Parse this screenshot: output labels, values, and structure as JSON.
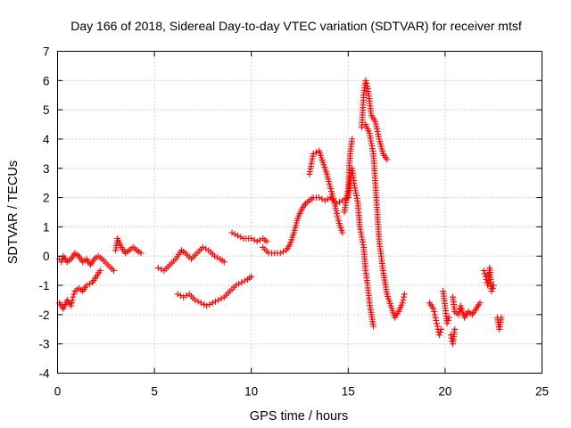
{
  "chart_data": {
    "type": "scatter",
    "title": "Day 166 of 2018, Sidereal Day-to-day VTEC variation (SDTVAR) for receiver mtsf",
    "xlabel": "GPS time / hours",
    "ylabel": "SDTVAR / TECUs",
    "xlim": [
      0,
      25
    ],
    "ylim": [
      -4,
      7
    ],
    "xticks": [
      0,
      5,
      10,
      15,
      20,
      25
    ],
    "yticks": [
      -4,
      -3,
      -2,
      -1,
      0,
      1,
      2,
      3,
      4,
      5,
      6,
      7
    ],
    "grid": true,
    "legend": "none",
    "marker": "+",
    "series": [
      {
        "name": "SDTVAR",
        "color": "#ff0000",
        "segments": [
          [
            [
              0.1,
              -0.1
            ],
            [
              0.2,
              -0.2
            ],
            [
              0.3,
              0.0
            ],
            [
              0.5,
              -0.2
            ],
            [
              0.7,
              -0.1
            ],
            [
              0.9,
              0.1
            ],
            [
              1.1,
              0.0
            ],
            [
              1.3,
              -0.2
            ],
            [
              1.5,
              -0.1
            ],
            [
              1.7,
              -0.3
            ],
            [
              1.9,
              -0.1
            ],
            [
              2.1,
              0.0
            ],
            [
              2.3,
              -0.1
            ],
            [
              2.6,
              -0.3
            ],
            [
              2.9,
              -0.5
            ]
          ],
          [
            [
              0.1,
              -1.6
            ],
            [
              0.3,
              -1.8
            ],
            [
              0.5,
              -1.5
            ],
            [
              0.7,
              -1.7
            ],
            [
              0.8,
              -1.4
            ],
            [
              0.9,
              -1.2
            ],
            [
              1.1,
              -1.1
            ],
            [
              1.3,
              -1.2
            ],
            [
              1.5,
              -1.0
            ],
            [
              1.8,
              -0.9
            ],
            [
              2.0,
              -0.7
            ],
            [
              2.2,
              -0.5
            ]
          ],
          [
            [
              3.0,
              0.2
            ],
            [
              3.1,
              0.6
            ],
            [
              3.3,
              0.3
            ],
            [
              3.5,
              0.1
            ],
            [
              3.7,
              0.2
            ],
            [
              3.9,
              0.3
            ],
            [
              4.1,
              0.2
            ],
            [
              4.3,
              0.1
            ]
          ],
          [
            [
              5.2,
              -0.4
            ],
            [
              5.5,
              -0.5
            ],
            [
              5.8,
              -0.3
            ],
            [
              6.1,
              -0.1
            ],
            [
              6.4,
              0.2
            ],
            [
              6.6,
              0.1
            ],
            [
              6.9,
              -0.1
            ],
            [
              7.2,
              0.1
            ],
            [
              7.5,
              0.3
            ],
            [
              7.8,
              0.2
            ],
            [
              8.1,
              0.0
            ],
            [
              8.4,
              -0.1
            ],
            [
              8.6,
              -0.2
            ]
          ],
          [
            [
              6.2,
              -1.3
            ],
            [
              6.5,
              -1.4
            ],
            [
              6.8,
              -1.3
            ],
            [
              7.1,
              -1.5
            ],
            [
              7.4,
              -1.6
            ],
            [
              7.7,
              -1.7
            ],
            [
              8.0,
              -1.6
            ],
            [
              8.3,
              -1.5
            ],
            [
              8.6,
              -1.4
            ],
            [
              8.9,
              -1.2
            ],
            [
              9.2,
              -1.0
            ],
            [
              9.5,
              -0.9
            ],
            [
              9.8,
              -0.8
            ],
            [
              10.0,
              -0.7
            ]
          ],
          [
            [
              9.0,
              0.8
            ],
            [
              9.3,
              0.7
            ],
            [
              9.6,
              0.6
            ],
            [
              10.0,
              0.6
            ],
            [
              10.3,
              0.5
            ],
            [
              10.6,
              0.6
            ],
            [
              10.8,
              0.5
            ]
          ],
          [
            [
              10.6,
              0.3
            ],
            [
              10.9,
              0.1
            ],
            [
              11.2,
              0.1
            ],
            [
              11.5,
              0.1
            ],
            [
              11.8,
              0.2
            ],
            [
              12.0,
              0.4
            ],
            [
              12.2,
              0.8
            ],
            [
              12.4,
              1.3
            ],
            [
              12.6,
              1.6
            ],
            [
              12.8,
              1.8
            ],
            [
              13.0,
              1.9
            ],
            [
              13.2,
              2.0
            ],
            [
              13.5,
              2.0
            ],
            [
              13.8,
              1.9
            ],
            [
              14.1,
              2.0
            ],
            [
              14.4,
              1.8
            ],
            [
              14.7,
              1.9
            ],
            [
              15.0,
              2.0
            ]
          ],
          [
            [
              13.0,
              2.8
            ],
            [
              13.2,
              3.5
            ],
            [
              13.5,
              3.6
            ],
            [
              13.7,
              3.2
            ],
            [
              13.9,
              2.8
            ],
            [
              14.1,
              2.3
            ],
            [
              14.3,
              1.8
            ],
            [
              14.5,
              1.2
            ],
            [
              14.7,
              0.8
            ]
          ],
          [
            [
              14.8,
              1.5
            ],
            [
              15.0,
              2.3
            ],
            [
              15.1,
              3.5
            ],
            [
              15.2,
              4.0
            ]
          ],
          [
            [
              15.0,
              2.0
            ],
            [
              15.2,
              3.0
            ],
            [
              15.3,
              2.5
            ],
            [
              15.5,
              1.8
            ],
            [
              15.6,
              1.0
            ],
            [
              15.8,
              0.3
            ],
            [
              15.9,
              -0.5
            ],
            [
              16.0,
              -1.0
            ],
            [
              16.1,
              -1.6
            ],
            [
              16.2,
              -2.0
            ],
            [
              16.3,
              -2.4
            ]
          ],
          [
            [
              15.7,
              4.4
            ],
            [
              15.8,
              5.5
            ],
            [
              15.9,
              6.0
            ],
            [
              16.0,
              5.8
            ],
            [
              16.1,
              5.3
            ],
            [
              16.2,
              4.8
            ],
            [
              16.4,
              4.6
            ],
            [
              16.6,
              4.0
            ],
            [
              16.8,
              3.5
            ],
            [
              17.0,
              3.3
            ]
          ],
          [
            [
              15.9,
              4.5
            ],
            [
              16.1,
              4.2
            ],
            [
              16.3,
              3.5
            ],
            [
              16.4,
              2.5
            ],
            [
              16.5,
              1.5
            ],
            [
              16.6,
              0.5
            ],
            [
              16.8,
              -0.5
            ],
            [
              17.0,
              -1.3
            ],
            [
              17.2,
              -1.7
            ],
            [
              17.4,
              -2.1
            ],
            [
              17.6,
              -1.9
            ],
            [
              17.8,
              -1.6
            ],
            [
              17.9,
              -1.3
            ]
          ],
          [
            [
              19.2,
              -1.6
            ],
            [
              19.4,
              -1.8
            ],
            [
              19.5,
              -2.1
            ],
            [
              19.6,
              -2.4
            ],
            [
              19.7,
              -2.7
            ],
            [
              19.8,
              -2.5
            ]
          ],
          [
            [
              19.9,
              -1.2
            ],
            [
              20.0,
              -1.7
            ],
            [
              20.1,
              -2.3
            ],
            [
              20.2,
              -2.1
            ]
          ],
          [
            [
              20.3,
              -2.7
            ],
            [
              20.4,
              -3.0
            ],
            [
              20.5,
              -2.5
            ]
          ],
          [
            [
              20.4,
              -1.4
            ],
            [
              20.5,
              -1.9
            ],
            [
              20.7,
              -2.0
            ],
            [
              20.8,
              -1.7
            ],
            [
              21.0,
              -2.1
            ],
            [
              21.2,
              -1.9
            ],
            [
              21.4,
              -2.0
            ],
            [
              21.6,
              -1.8
            ],
            [
              21.8,
              -1.6
            ]
          ],
          [
            [
              22.0,
              -0.5
            ],
            [
              22.1,
              -0.7
            ],
            [
              22.2,
              -1.0
            ],
            [
              22.3,
              -0.4
            ],
            [
              22.4,
              -1.2
            ],
            [
              22.5,
              -1.0
            ]
          ],
          [
            [
              22.7,
              -2.1
            ],
            [
              22.8,
              -2.5
            ],
            [
              22.9,
              -2.1
            ]
          ]
        ]
      }
    ]
  }
}
